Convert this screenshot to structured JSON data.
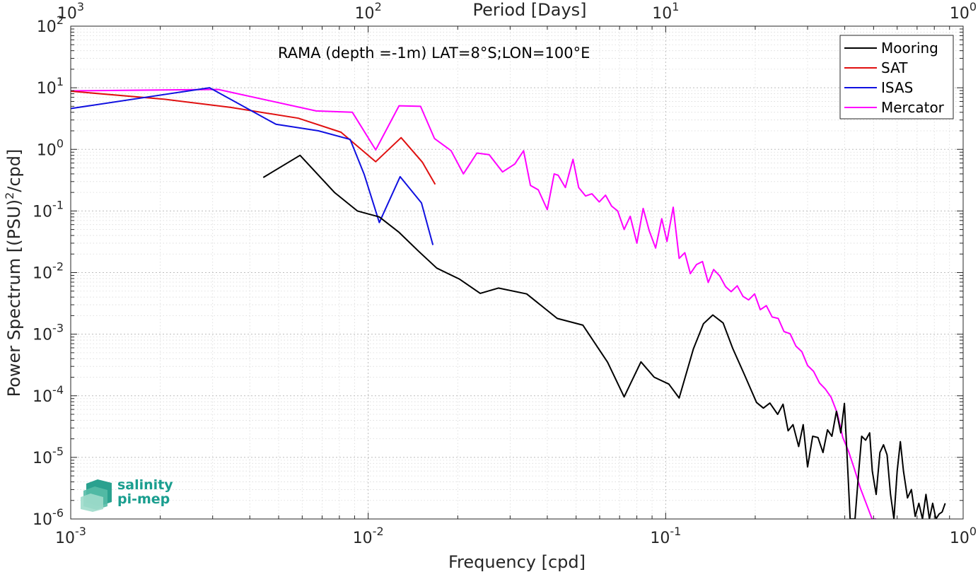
{
  "chart_data": {
    "type": "line",
    "xscale": "log",
    "yscale": "log",
    "xlim": [
      0.001,
      1
    ],
    "ylim": [
      1e-06,
      100
    ],
    "xlabel": "Frequency [cpd]",
    "ylabel": "Power Spectrum [(PSU)",
    "ylabel_sup": "2",
    "ylabel_tail": "/cpd]",
    "top_xlabel": "Period [Days]",
    "annotation": "RAMA (depth =-1m) LAT=8°S;LON=100°E",
    "grid": true,
    "legend_position": "top-right",
    "x_ticks": [
      {
        "value": 0.001,
        "base": "10",
        "exp": "-3"
      },
      {
        "value": 0.01,
        "base": "10",
        "exp": "-2"
      },
      {
        "value": 0.1,
        "base": "10",
        "exp": "-1"
      },
      {
        "value": 1,
        "base": "10",
        "exp": "0"
      }
    ],
    "top_ticks": [
      {
        "value": 0.001,
        "base": "10",
        "exp": "3"
      },
      {
        "value": 0.01,
        "base": "10",
        "exp": "2"
      },
      {
        "value": 0.1,
        "base": "10",
        "exp": "1"
      },
      {
        "value": 1,
        "base": "10",
        "exp": "0"
      }
    ],
    "y_ticks": [
      {
        "value": 100,
        "base": "10",
        "exp": "2"
      },
      {
        "value": 10,
        "base": "10",
        "exp": "1"
      },
      {
        "value": 1,
        "base": "10",
        "exp": "0"
      },
      {
        "value": 0.1,
        "base": "10",
        "exp": "-1"
      },
      {
        "value": 0.01,
        "base": "10",
        "exp": "-2"
      },
      {
        "value": 0.001,
        "base": "10",
        "exp": "-3"
      },
      {
        "value": 0.0001,
        "base": "10",
        "exp": "-4"
      },
      {
        "value": 1e-05,
        "base": "10",
        "exp": "-5"
      },
      {
        "value": 1e-06,
        "base": "10",
        "exp": "-6"
      }
    ],
    "series": [
      {
        "name": "Mooring",
        "color": "#000000",
        "x": [
          0.00444,
          0.0059,
          0.0077,
          0.0092,
          0.0109,
          0.0127,
          0.0148,
          0.017,
          0.0203,
          0.0238,
          0.0274,
          0.0341,
          0.0432,
          0.0527,
          0.0638,
          0.0725,
          0.0826,
          0.0915,
          0.1025,
          0.111,
          0.124,
          0.134,
          0.144,
          0.156,
          0.168,
          0.184,
          0.202,
          0.213,
          0.224,
          0.238,
          0.248,
          0.258,
          0.268,
          0.28,
          0.29,
          0.3,
          0.312,
          0.325,
          0.338,
          0.35,
          0.362,
          0.375,
          0.388,
          0.399,
          0.41,
          0.417,
          0.424,
          0.433,
          0.445,
          0.456,
          0.47,
          0.485,
          0.495,
          0.51,
          0.525,
          0.54,
          0.555,
          0.57,
          0.585,
          0.6,
          0.615,
          0.63,
          0.65,
          0.67,
          0.69,
          0.71,
          0.73,
          0.75,
          0.77,
          0.79,
          0.81,
          0.83,
          0.85,
          0.87
        ],
        "y": [
          0.35,
          0.8,
          0.2,
          0.1,
          0.08,
          0.045,
          0.022,
          0.0118,
          0.0078,
          0.0046,
          0.0056,
          0.0045,
          0.0018,
          0.0014,
          0.00035,
          9.6e-05,
          0.000355,
          0.0002,
          0.000155,
          9.2e-05,
          0.00058,
          0.00148,
          0.00205,
          0.00152,
          0.00059,
          0.00022,
          7.8e-05,
          6.3e-05,
          7.6e-05,
          5e-05,
          7.3e-05,
          2.7e-05,
          3.4e-05,
          1.5e-05,
          3.4e-05,
          7e-06,
          2.2e-05,
          2.1e-05,
          1.2e-05,
          2.8e-05,
          2.2e-05,
          5.6e-05,
          2.5e-05,
          7.5e-05,
          5.5e-06,
          1e-06,
          1e-06,
          1e-06,
          5.5e-06,
          2.2e-05,
          1.9e-05,
          2.5e-05,
          6e-06,
          2.5e-06,
          1.2e-05,
          1.6e-05,
          1.1e-05,
          2.5e-06,
          1e-06,
          6e-06,
          1.8e-05,
          6e-06,
          2.2e-06,
          3e-06,
          1.1e-06,
          1.8e-06,
          1e-06,
          2.5e-06,
          1e-06,
          1.8e-06,
          1e-06,
          1.2e-06,
          1.3e-06,
          1.8e-06
        ]
      },
      {
        "name": "SAT",
        "color": "#e01010",
        "x": [
          0.001,
          0.00207,
          0.00345,
          0.00582,
          0.0081,
          0.0106,
          0.0129,
          0.0152,
          0.0168
        ],
        "y": [
          8.8,
          6.5,
          4.8,
          3.2,
          1.9,
          0.63,
          1.55,
          0.62,
          0.27
        ]
      },
      {
        "name": "ISAS",
        "color": "#1010e0",
        "x": [
          0.001,
          0.00293,
          0.0049,
          0.0068,
          0.0087,
          0.0097,
          0.0109,
          0.0128,
          0.0151,
          0.0165
        ],
        "y": [
          4.6,
          10,
          2.55,
          2.0,
          1.45,
          0.39,
          0.065,
          0.36,
          0.135,
          0.028
        ]
      },
      {
        "name": "Mercator",
        "color": "#ff00ff",
        "x": [
          0.001,
          0.00313,
          0.00668,
          0.00885,
          0.0106,
          0.0127,
          0.015,
          0.0167,
          0.019,
          0.0209,
          0.0232,
          0.0255,
          0.0283,
          0.0311,
          0.0333,
          0.0351,
          0.0373,
          0.04,
          0.0422,
          0.0435,
          0.046,
          0.0488,
          0.051,
          0.0538,
          0.0565,
          0.0598,
          0.0628,
          0.0658,
          0.069,
          0.0725,
          0.076,
          0.08,
          0.084,
          0.088,
          0.0925,
          0.097,
          0.101,
          0.106,
          0.111,
          0.116,
          0.121,
          0.127,
          0.133,
          0.139,
          0.145,
          0.152,
          0.159,
          0.166,
          0.174,
          0.182,
          0.19,
          0.199,
          0.208,
          0.218,
          0.228,
          0.239,
          0.25,
          0.262,
          0.274,
          0.287,
          0.3,
          0.314,
          0.329,
          0.344,
          0.36,
          0.377,
          0.394,
          0.412,
          0.431,
          0.451,
          0.472,
          0.494,
          0.51
        ],
        "y": [
          8.9,
          9.4,
          4.2,
          4.0,
          0.98,
          5.1,
          5.0,
          1.5,
          0.95,
          0.4,
          0.87,
          0.82,
          0.43,
          0.58,
          0.95,
          0.26,
          0.22,
          0.105,
          0.4,
          0.38,
          0.24,
          0.69,
          0.24,
          0.175,
          0.19,
          0.14,
          0.18,
          0.12,
          0.1,
          0.05,
          0.082,
          0.03,
          0.11,
          0.048,
          0.025,
          0.075,
          0.032,
          0.115,
          0.017,
          0.021,
          0.0096,
          0.0135,
          0.0151,
          0.0069,
          0.0112,
          0.0088,
          0.0059,
          0.0049,
          0.0061,
          0.0041,
          0.0036,
          0.0045,
          0.0025,
          0.0029,
          0.0019,
          0.0018,
          0.0011,
          0.00102,
          0.00064,
          0.00052,
          0.00031,
          0.00025,
          0.000161,
          0.000129,
          9.4e-05,
          5.3e-05,
          2.1e-05,
          1.25e-05,
          6.5e-06,
          3.2e-06,
          1.8e-06,
          1e-06,
          1e-06
        ]
      }
    ]
  },
  "logo": {
    "line1": "salinity",
    "line2": "pi-mep"
  }
}
